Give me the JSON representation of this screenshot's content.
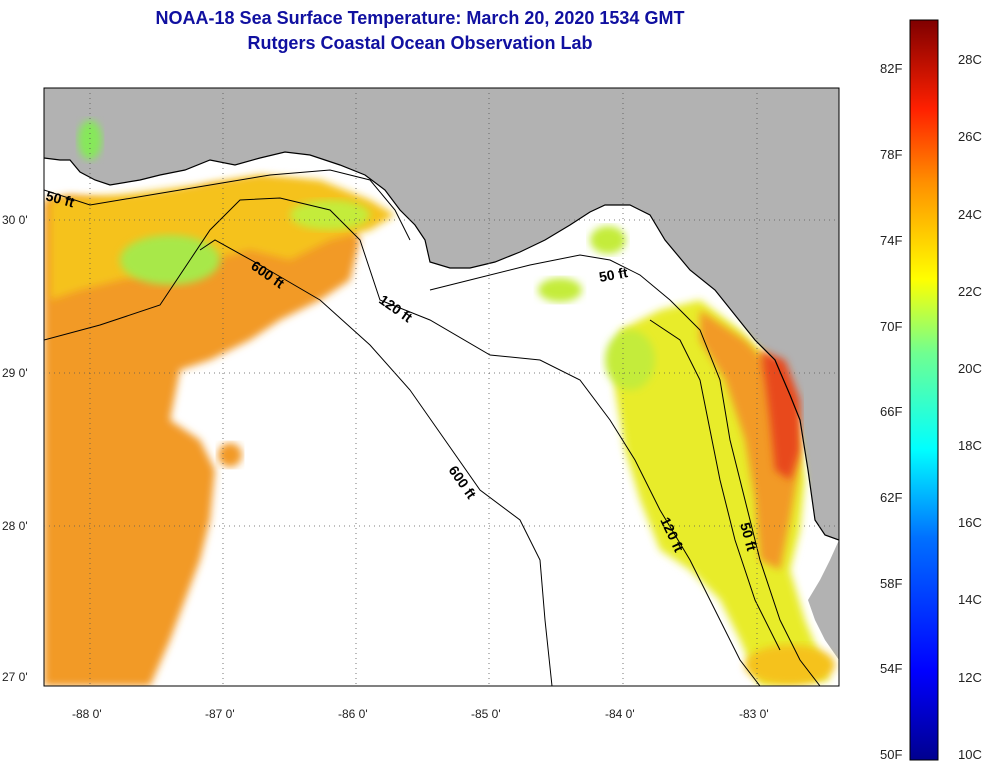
{
  "title": {
    "line1": "NOAA-18 Sea Surface Temperature:  March 20, 2020 1534 GMT",
    "line2": "Rutgers Coastal Ocean Observation Lab"
  },
  "colors": {
    "land": "#b2b2b2",
    "nodata": "#ffffff",
    "warm": "#f29a25",
    "mid": "#f5c21a",
    "cool": "#d8ec26",
    "green": "#86e85a",
    "hot": "#e8481c",
    "title": "#1010a0"
  },
  "map": {
    "lat_ticks": [
      "30 0'",
      "29 0'",
      "28 0'",
      "27 0'"
    ],
    "lon_ticks": [
      "-88 0'",
      "-87 0'",
      "-86 0'",
      "-85 0'",
      "-84 0'",
      "-83 0'"
    ],
    "contour_labels": [
      "50 ft",
      "600 ft",
      "120 ft",
      "50 ft",
      "600 ft",
      "120 ft",
      "50 ft"
    ]
  },
  "colorbar": {
    "f_labels": [
      "82F",
      "78F",
      "74F",
      "70F",
      "66F",
      "62F",
      "58F",
      "54F",
      "50F"
    ],
    "c_labels": [
      "28C",
      "26C",
      "24C",
      "22C",
      "20C",
      "18C",
      "16C",
      "14C",
      "12C",
      "10C"
    ]
  }
}
